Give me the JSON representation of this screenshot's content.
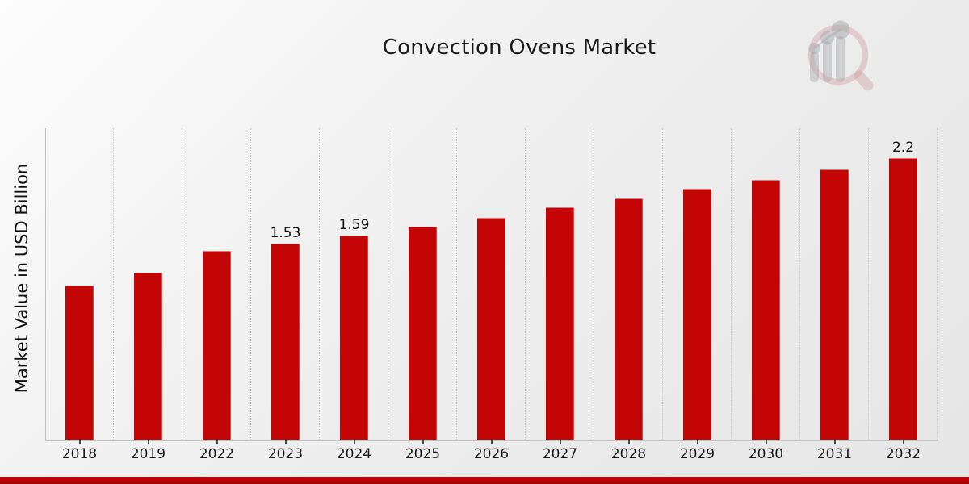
{
  "chart_data": {
    "type": "bar",
    "title": "Convection Ovens Market",
    "ylabel": "Market Value in USD Billion",
    "xlabel": "",
    "categories": [
      "2018",
      "2019",
      "2022",
      "2023",
      "2024",
      "2025",
      "2026",
      "2027",
      "2028",
      "2029",
      "2030",
      "2031",
      "2032"
    ],
    "values": [
      1.2,
      1.3,
      1.47,
      1.53,
      1.59,
      1.66,
      1.73,
      1.81,
      1.88,
      1.96,
      2.03,
      2.11,
      2.2
    ],
    "value_labels": [
      {
        "category": "2023",
        "text": "1.53"
      },
      {
        "category": "2024",
        "text": "1.59"
      },
      {
        "category": "2032",
        "text": "2.2"
      }
    ],
    "ylim": [
      0,
      2.43
    ],
    "grid": {
      "vertical": true,
      "style": "dotted"
    },
    "legend": null,
    "colors": {
      "bar": "#c40505",
      "gridline": "#c7c7c7",
      "axis": "#bfbfbf",
      "tick": "#4a4a4a",
      "text": "#1a1a1a"
    }
  },
  "branding": {
    "logo_icon": "magnifier-bar-chart-logo",
    "accent_bar_color": "#b90404"
  }
}
